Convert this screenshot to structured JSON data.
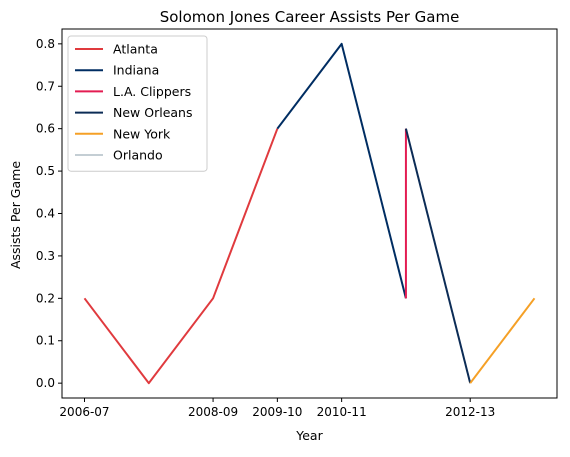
{
  "chart_data": {
    "type": "line",
    "title": "Solomon Jones  Career Assists Per Game",
    "xlabel": "Year",
    "ylabel": "Assists Per Game",
    "x_tick_labels": [
      "2006-07",
      "2008-09",
      "2009-10",
      "2010-11",
      "2012-13"
    ],
    "y_tick_labels": [
      "0.0",
      "0.1",
      "0.2",
      "0.3",
      "0.4",
      "0.5",
      "0.6",
      "0.7",
      "0.8"
    ],
    "ylim": [
      -0.035,
      0.835
    ],
    "grid": false,
    "legend_position": "top-left",
    "series": [
      {
        "name": "Atlanta",
        "color": "#e03a3e",
        "points": [
          {
            "season": "2006-07",
            "value": 0.2
          },
          {
            "season": "2007-08",
            "value": 0.0
          },
          {
            "season": "2008-09",
            "value": 0.2
          },
          {
            "season": "2009-10",
            "value": 0.6
          }
        ]
      },
      {
        "name": "Indiana",
        "color": "#002d62",
        "points": [
          {
            "season": "2009-10",
            "value": 0.6
          },
          {
            "season": "2010-11",
            "value": 0.8
          },
          {
            "season": "2011-12",
            "value": 0.2
          }
        ]
      },
      {
        "name": "L.A. Clippers",
        "color": "#e31c52",
        "points": [
          {
            "season": "2011-12",
            "value": 0.2
          },
          {
            "season": "2011-12",
            "value": 0.6
          }
        ]
      },
      {
        "name": "New Orleans",
        "color": "#0c2c56",
        "points": [
          {
            "season": "2011-12",
            "value": 0.6
          },
          {
            "season": "2012-13",
            "value": 0.0
          }
        ]
      },
      {
        "name": "New York",
        "color": "#f5a026",
        "points": [
          {
            "season": "2012-13",
            "value": 0.0
          },
          {
            "season": "2013-14",
            "value": 0.2
          }
        ]
      },
      {
        "name": "Orlando",
        "color": "#c4ced4",
        "points": []
      }
    ]
  }
}
